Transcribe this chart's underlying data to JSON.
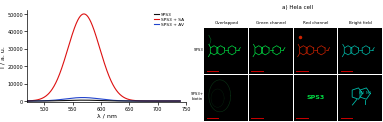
{
  "title": "a) Hela cell",
  "col_labels": [
    "Overlapped",
    "Green channel",
    "Red channel",
    "Bright field"
  ],
  "row_labels": [
    "SPS3",
    "SPS3+\nbiotin"
  ],
  "legend_labels": [
    "SPS3",
    "SPS3 + SA",
    "SPS3 + AV"
  ],
  "legend_colors": [
    "#111111",
    "#dd1111",
    "#2244cc"
  ],
  "xlabel": "λ / nm",
  "ylabel": "I / a. u.",
  "xlim": [
    470,
    740
  ],
  "ylim": [
    -500,
    52000
  ],
  "yticks": [
    0,
    10000,
    20000,
    30000,
    40000,
    50000
  ],
  "ytick_labels": [
    "0",
    "10000",
    "20000",
    "30000",
    "40000",
    "50000"
  ],
  "xticks": [
    500,
    550,
    600,
    650,
    700,
    750
  ],
  "peak_wavelength_sa": 570,
  "peak_height_sa": 50000,
  "peak_sigma_sa": 28,
  "peak_wavelength_av": 568,
  "peak_height_av": 2000,
  "peak_sigma_av": 30,
  "peak_wavelength_sps3": 568,
  "peak_height_sps3": 500,
  "peak_sigma_sps3": 30,
  "background_color": "#ffffff",
  "image_bg": "#000000",
  "scalebar_color": "#cc0000",
  "green": "#00dd44",
  "red_mol": "#cc2200",
  "teal": "#00bbaa",
  "dim_green": "#115522"
}
